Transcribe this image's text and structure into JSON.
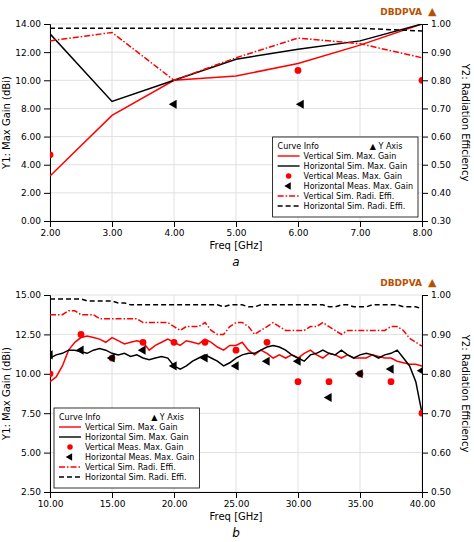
{
  "chart_data": [
    {
      "type": "line",
      "label": "a",
      "xlabel": "Freq [GHz]",
      "ylabel": "Y1: Max Gain (dBi)",
      "y2label": "Y2: Radiation Efficiency",
      "xlim": [
        2.0,
        8.0
      ],
      "xticks": [
        {
          "value": 2.0,
          "label": "2.00"
        },
        {
          "value": 3.0,
          "label": "3.00"
        },
        {
          "value": 4.0,
          "label": "4.00"
        },
        {
          "value": 5.0,
          "label": "5.00"
        },
        {
          "value": 6.0,
          "label": "6.00"
        },
        {
          "value": 7.0,
          "label": "7.00"
        },
        {
          "value": 8.0,
          "label": "8.00"
        }
      ],
      "ylim": [
        0.0,
        14.0
      ],
      "yticks": [
        {
          "value": 0.0,
          "label": "0.00"
        },
        {
          "value": 2.0,
          "label": "2.00"
        },
        {
          "value": 4.0,
          "label": "4.00"
        },
        {
          "value": 6.0,
          "label": "6.00"
        },
        {
          "value": 8.0,
          "label": "8.00"
        },
        {
          "value": 10.0,
          "label": "10.00"
        },
        {
          "value": 12.0,
          "label": "12.00"
        },
        {
          "value": 14.0,
          "label": "14.00"
        }
      ],
      "y2lim": [
        0.3,
        1.0
      ],
      "y2ticks": [
        {
          "value": 0.3,
          "label": "0.30"
        },
        {
          "value": 0.4,
          "label": "0.40"
        },
        {
          "value": 0.5,
          "label": "0.50"
        },
        {
          "value": 0.6,
          "label": "0.60"
        },
        {
          "value": 0.7,
          "label": "0.70"
        },
        {
          "value": 0.8,
          "label": "0.80"
        },
        {
          "value": 0.9,
          "label": "0.90"
        },
        {
          "value": 1.0,
          "label": "1.00"
        }
      ],
      "grid": true,
      "legend": "bottom-right",
      "legend_title": "Curve Info                    ▲ Y Axis",
      "annotations": [
        {
          "text": "DBDPVA",
          "color": "#b85000"
        },
        {
          "text": "▲",
          "color": "#b85000"
        }
      ],
      "series": [
        {
          "name": "Vertical Sim. Max. Gain",
          "type": "line",
          "color": "red",
          "line_style": "solid",
          "axis": "y",
          "x": [
            2.0,
            3.0,
            4.0,
            5.0,
            6.0,
            7.0,
            8.0
          ],
          "values": [
            3.2,
            7.5,
            10.0,
            10.3,
            11.2,
            12.5,
            14.0
          ]
        },
        {
          "name": "Horizontal Sim. Max. Gain",
          "type": "line",
          "color": "black",
          "line_style": "solid",
          "axis": "y",
          "x": [
            2.0,
            3.0,
            4.0,
            5.0,
            6.0,
            7.0,
            8.0
          ],
          "values": [
            13.3,
            8.5,
            10.0,
            11.5,
            12.2,
            12.8,
            14.0
          ]
        },
        {
          "name": "Vertical Meas. Max. Gain",
          "type": "scatter",
          "color": "red",
          "marker": "circle",
          "axis": "y",
          "x": [
            2.0,
            6.0,
            8.0
          ],
          "values": [
            4.7,
            10.7,
            10.0
          ]
        },
        {
          "name": "Horizontal Meas. Max. Gain",
          "type": "scatter",
          "color": "black",
          "marker": "triangle-left",
          "axis": "y",
          "x": [
            4.0,
            6.05
          ],
          "values": [
            8.3,
            8.3
          ]
        },
        {
          "name": "Vertical Sim. Radi. Effi.",
          "type": "line",
          "color": "red",
          "line_style": "dashdot",
          "axis": "y2",
          "x": [
            2.0,
            3.0,
            4.0,
            5.0,
            6.0,
            7.0,
            8.0
          ],
          "values": [
            0.94,
            0.97,
            0.8,
            0.88,
            0.95,
            0.93,
            0.88
          ]
        },
        {
          "name": "Horizontal Sim. Radi. Effi.",
          "type": "line",
          "color": "black",
          "line_style": "dashed",
          "axis": "y2",
          "x": [
            2.0,
            3.0,
            4.0,
            5.0,
            6.0,
            7.0,
            8.0
          ],
          "values": [
            0.985,
            0.985,
            0.985,
            0.985,
            0.985,
            0.985,
            0.975
          ]
        }
      ]
    },
    {
      "type": "line",
      "label": "b",
      "xlabel": "Freq [GHz]",
      "ylabel": "Y1: Max Gain (dBi)",
      "y2label": "Y2: Radiation Efficiency",
      "xlim": [
        10.0,
        40.0
      ],
      "xticks": [
        {
          "value": 10.0,
          "label": "10.00"
        },
        {
          "value": 15.0,
          "label": "15.00"
        },
        {
          "value": 20.0,
          "label": "20.00"
        },
        {
          "value": 25.0,
          "label": "25.00"
        },
        {
          "value": 30.0,
          "label": "30.00"
        },
        {
          "value": 35.0,
          "label": "35.00"
        },
        {
          "value": 40.0,
          "label": "40.00"
        }
      ],
      "ylim": [
        2.5,
        15.0
      ],
      "yticks": [
        {
          "value": 2.5,
          "label": "2.50"
        },
        {
          "value": 5.0,
          "label": "5.00"
        },
        {
          "value": 7.5,
          "label": "7.50"
        },
        {
          "value": 10.0,
          "label": "10.00"
        },
        {
          "value": 12.5,
          "label": "12.50"
        },
        {
          "value": 15.0,
          "label": "15.00"
        }
      ],
      "y2lim": [
        0.5,
        1.0
      ],
      "y2ticks": [
        {
          "value": 0.5,
          "label": "0.50"
        },
        {
          "value": 0.6,
          "label": "0.60"
        },
        {
          "value": 0.7,
          "label": "0.70"
        },
        {
          "value": 0.8,
          "label": "0.80"
        },
        {
          "value": 0.9,
          "label": "0.90"
        },
        {
          "value": 1.0,
          "label": "1.00"
        }
      ],
      "grid": true,
      "legend": "bottom-left",
      "legend_title": "Curve Info                    ▲ Y Axis",
      "annotations": [
        {
          "text": "DBDPVA",
          "color": "#b85000"
        },
        {
          "text": "▲",
          "color": "#b85000"
        }
      ],
      "series": [
        {
          "name": "Vertical Sim. Max. Gain",
          "type": "line",
          "color": "red",
          "line_style": "solid",
          "axis": "y",
          "x": [
            10.0,
            10.5,
            11.0,
            11.5,
            12.0,
            12.5,
            13.0,
            13.5,
            14.0,
            14.5,
            15.0,
            15.5,
            16.0,
            16.5,
            17.0,
            17.5,
            18.0,
            18.5,
            19.0,
            19.5,
            20.0,
            20.5,
            21.0,
            21.5,
            22.0,
            22.5,
            23.0,
            23.5,
            24.0,
            24.5,
            25.0,
            25.5,
            26.0,
            26.5,
            27.0,
            27.5,
            28.0,
            28.5,
            29.0,
            29.5,
            30.0,
            30.5,
            31.0,
            31.5,
            32.0,
            32.5,
            33.0,
            33.5,
            34.0,
            34.5,
            35.0,
            35.5,
            36.0,
            36.5,
            37.0,
            37.5,
            38.0,
            38.5,
            39.0,
            39.5,
            40.0
          ],
          "values": [
            9.5,
            9.8,
            10.5,
            11.5,
            12.0,
            12.3,
            12.4,
            12.3,
            12.2,
            12.0,
            12.3,
            12.1,
            11.9,
            12.0,
            12.1,
            12.0,
            11.5,
            11.8,
            12.0,
            12.2,
            12.0,
            11.8,
            12.1,
            12.0,
            11.9,
            12.2,
            12.0,
            11.7,
            11.5,
            11.8,
            11.8,
            12.0,
            11.5,
            11.2,
            11.5,
            11.3,
            11.0,
            11.2,
            11.0,
            11.2,
            11.0,
            11.3,
            11.5,
            11.2,
            11.0,
            11.3,
            11.2,
            11.0,
            11.2,
            11.0,
            11.0,
            11.0,
            11.2,
            11.1,
            11.0,
            11.0,
            10.8,
            10.7,
            10.6,
            10.6,
            10.5
          ]
        },
        {
          "name": "Horizontal Sim. Max. Gain",
          "type": "line",
          "color": "black",
          "line_style": "solid",
          "axis": "y",
          "x": [
            10.0,
            10.5,
            11.0,
            11.5,
            12.0,
            12.5,
            13.0,
            13.5,
            14.0,
            14.5,
            15.0,
            15.5,
            16.0,
            16.5,
            17.0,
            17.5,
            18.0,
            18.5,
            19.0,
            19.5,
            20.0,
            20.5,
            21.0,
            21.5,
            22.0,
            22.5,
            23.0,
            23.5,
            24.0,
            24.5,
            25.0,
            25.5,
            26.0,
            26.5,
            27.0,
            27.5,
            28.0,
            28.5,
            29.0,
            29.5,
            30.0,
            30.5,
            31.0,
            31.5,
            32.0,
            32.5,
            33.0,
            33.5,
            34.0,
            34.5,
            35.0,
            35.5,
            36.0,
            36.5,
            37.0,
            37.5,
            38.0,
            38.5,
            39.0,
            39.5,
            40.0
          ],
          "values": [
            11.0,
            11.2,
            11.3,
            11.5,
            11.5,
            11.4,
            11.3,
            11.5,
            11.6,
            11.5,
            11.3,
            11.2,
            11.3,
            11.1,
            11.2,
            11.0,
            10.9,
            11.0,
            11.1,
            11.0,
            10.5,
            10.3,
            10.5,
            10.8,
            11.0,
            11.2,
            11.0,
            10.8,
            10.5,
            10.7,
            11.0,
            11.2,
            11.3,
            11.3,
            11.5,
            11.7,
            11.8,
            11.7,
            11.5,
            11.2,
            11.0,
            10.8,
            11.2,
            11.3,
            11.5,
            11.3,
            11.2,
            11.5,
            11.2,
            11.0,
            11.2,
            11.3,
            11.2,
            11.0,
            11.2,
            11.3,
            11.5,
            11.0,
            10.5,
            9.5,
            7.5
          ]
        },
        {
          "name": "Vertical Meas. Max. Gain",
          "type": "scatter",
          "color": "red",
          "marker": "circle",
          "axis": "y",
          "x": [
            10.0,
            12.5,
            15.0,
            17.5,
            20.0,
            22.5,
            25.0,
            27.5,
            30.0,
            32.5,
            35.0,
            37.5,
            40.0
          ],
          "values": [
            10.0,
            12.5,
            11.0,
            12.0,
            12.0,
            12.0,
            11.5,
            12.0,
            9.5,
            9.5,
            10.0,
            9.5,
            7.5
          ]
        },
        {
          "name": "Horizontal Meas. Max. Gain",
          "type": "scatter",
          "color": "black",
          "marker": "triangle-left",
          "axis": "y",
          "x": [
            10.0,
            12.5,
            15.0,
            17.5,
            20.0,
            22.5,
            25.0,
            27.5,
            30.0,
            32.5,
            35.0,
            37.5,
            40.0
          ],
          "values": [
            11.2,
            11.5,
            11.0,
            11.5,
            10.5,
            11.0,
            10.5,
            10.8,
            10.8,
            8.5,
            10.0,
            10.3,
            10.2
          ]
        },
        {
          "name": "Vertical Sim. Radi. Effi.",
          "type": "line",
          "color": "red",
          "line_style": "dashdot",
          "axis": "y2",
          "x": [
            10.0,
            10.5,
            11.0,
            11.5,
            12.0,
            12.5,
            13.0,
            13.5,
            14.0,
            14.5,
            15.0,
            15.5,
            16.0,
            16.5,
            17.0,
            17.5,
            18.0,
            18.5,
            19.0,
            19.5,
            20.0,
            20.5,
            21.0,
            21.5,
            22.0,
            22.5,
            23.0,
            23.5,
            24.0,
            24.5,
            25.0,
            25.5,
            26.0,
            26.5,
            27.0,
            27.5,
            28.0,
            28.5,
            29.0,
            29.5,
            30.0,
            30.5,
            31.0,
            31.5,
            32.0,
            32.5,
            33.0,
            33.5,
            34.0,
            34.5,
            35.0,
            35.5,
            36.0,
            36.5,
            37.0,
            37.5,
            38.0,
            38.5,
            39.0,
            39.5,
            40.0
          ],
          "values": [
            0.95,
            0.95,
            0.95,
            0.96,
            0.96,
            0.95,
            0.95,
            0.95,
            0.94,
            0.94,
            0.94,
            0.94,
            0.94,
            0.94,
            0.94,
            0.93,
            0.93,
            0.93,
            0.93,
            0.93,
            0.92,
            0.91,
            0.92,
            0.92,
            0.92,
            0.93,
            0.91,
            0.9,
            0.9,
            0.92,
            0.93,
            0.93,
            0.92,
            0.9,
            0.91,
            0.92,
            0.93,
            0.92,
            0.91,
            0.91,
            0.91,
            0.91,
            0.92,
            0.92,
            0.93,
            0.92,
            0.91,
            0.9,
            0.91,
            0.91,
            0.91,
            0.91,
            0.91,
            0.91,
            0.91,
            0.92,
            0.92,
            0.91,
            0.89,
            0.88,
            0.87
          ]
        },
        {
          "name": "Horizontal Sim. Radi. Effi.",
          "type": "line",
          "color": "black",
          "line_style": "dashed",
          "axis": "y2",
          "x": [
            10.0,
            10.5,
            11.0,
            11.5,
            12.0,
            12.5,
            13.0,
            13.5,
            14.0,
            14.5,
            15.0,
            15.5,
            16.0,
            16.5,
            17.0,
            17.5,
            18.0,
            18.5,
            19.0,
            19.5,
            20.0,
            20.5,
            21.0,
            21.5,
            22.0,
            22.5,
            23.0,
            23.5,
            24.0,
            24.5,
            25.0,
            25.5,
            26.0,
            26.5,
            27.0,
            27.5,
            28.0,
            28.5,
            29.0,
            29.5,
            30.0,
            30.5,
            31.0,
            31.5,
            32.0,
            32.5,
            33.0,
            33.5,
            34.0,
            34.5,
            35.0,
            35.5,
            36.0,
            36.5,
            37.0,
            37.5,
            38.0,
            38.5,
            39.0,
            39.5,
            40.0
          ],
          "values": [
            0.99,
            0.99,
            0.99,
            0.99,
            0.99,
            0.99,
            0.985,
            0.985,
            0.985,
            0.985,
            0.985,
            0.98,
            0.98,
            0.975,
            0.975,
            0.975,
            0.975,
            0.975,
            0.975,
            0.975,
            0.975,
            0.975,
            0.975,
            0.975,
            0.975,
            0.975,
            0.975,
            0.975,
            0.97,
            0.975,
            0.975,
            0.975,
            0.97,
            0.97,
            0.975,
            0.975,
            0.975,
            0.975,
            0.975,
            0.975,
            0.975,
            0.975,
            0.975,
            0.975,
            0.975,
            0.97,
            0.97,
            0.975,
            0.975,
            0.97,
            0.97,
            0.97,
            0.975,
            0.975,
            0.975,
            0.975,
            0.975,
            0.97,
            0.97,
            0.97,
            0.965
          ]
        }
      ]
    }
  ]
}
